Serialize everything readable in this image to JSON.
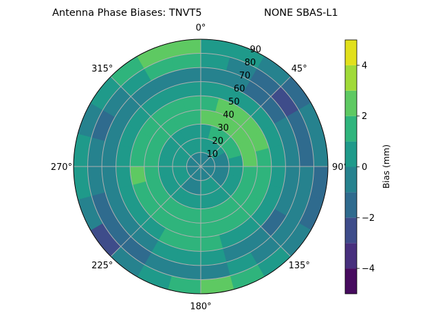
{
  "chart_data": {
    "type": "heatmap",
    "subtype": "polar-contourf",
    "title_left": "Antenna Phase Biases: TNVT5",
    "title_right": "NONE SBAS-L1",
    "angular_ticks": [
      "0°",
      "45°",
      "90°",
      "135°",
      "180°",
      "225°",
      "270°",
      "315°"
    ],
    "radial_ticks": [
      "10",
      "20",
      "30",
      "40",
      "50",
      "60",
      "70",
      "80",
      "90"
    ],
    "radial_range": [
      0,
      90
    ],
    "theta_zero": "north",
    "theta_direction": "clockwise",
    "grid": true,
    "colorbar": {
      "label": "Bias (mm)",
      "ticks": [
        "−4",
        "−2",
        "0",
        "2",
        "4"
      ],
      "levels": [
        -5,
        -4,
        -3,
        -2,
        -1,
        0,
        1,
        2,
        3,
        4,
        5
      ],
      "colormap": "viridis",
      "colors": [
        "#460b5e",
        "#472f7d",
        "#3e4c8a",
        "#2f6b8e",
        "#26828e",
        "#1f9a8a",
        "#2fb47c",
        "#5ec962",
        "#a0da39",
        "#e1e01c"
      ]
    },
    "azimuth_centers": [
      7.5,
      22.5,
      37.5,
      52.5,
      67.5,
      82.5,
      97.5,
      112.5,
      127.5,
      142.5,
      157.5,
      172.5,
      187.5,
      202.5,
      217.5,
      232.5,
      247.5,
      262.5,
      277.5,
      292.5,
      307.5,
      322.5,
      337.5,
      352.5
    ],
    "radial_centers": [
      5,
      15,
      25,
      35,
      45,
      55,
      65,
      75,
      85
    ],
    "values": [
      [
        -0.5,
        0.5,
        0.5,
        2.5,
        1.5,
        0.5,
        -0.5,
        0.5,
        0.5
      ],
      [
        -0.5,
        0.5,
        1.5,
        2.5,
        2.5,
        0.5,
        -0.5,
        -0.5,
        0.5
      ],
      [
        -0.5,
        0.5,
        1.5,
        2.5,
        2.5,
        0.5,
        -1.5,
        -1.5,
        -0.5
      ],
      [
        -0.5,
        0.5,
        1.5,
        2.5,
        2.5,
        0.5,
        -1.5,
        -2.5,
        -1.5
      ],
      [
        -0.5,
        -0.5,
        1.5,
        2.5,
        2.5,
        0.5,
        -0.5,
        -1.5,
        -0.5
      ],
      [
        -0.5,
        -0.5,
        0.5,
        2.5,
        1.5,
        0.5,
        -0.5,
        -1.5,
        -0.5
      ],
      [
        -0.5,
        -0.5,
        0.5,
        1.5,
        1.5,
        0.5,
        -0.5,
        -0.5,
        -1.5
      ],
      [
        -0.5,
        -0.5,
        0.5,
        1.5,
        1.5,
        0.5,
        -0.5,
        -0.5,
        -1.5
      ],
      [
        -0.5,
        -0.5,
        0.5,
        1.5,
        1.5,
        0.5,
        -1.5,
        -0.5,
        -0.5
      ],
      [
        -0.5,
        0.5,
        0.5,
        1.5,
        1.5,
        0.5,
        -0.5,
        -0.5,
        0.5
      ],
      [
        -0.5,
        0.5,
        0.5,
        1.5,
        1.5,
        0.5,
        -0.5,
        0.5,
        1.5
      ],
      [
        -0.5,
        0.5,
        0.5,
        1.5,
        1.5,
        1.5,
        0.5,
        -0.5,
        2.5
      ],
      [
        -0.5,
        -0.5,
        0.5,
        1.5,
        1.5,
        1.5,
        0.5,
        -0.5,
        1.5
      ],
      [
        -0.5,
        -0.5,
        0.5,
        1.5,
        1.5,
        1.5,
        0.5,
        -0.5,
        0.5
      ],
      [
        -0.5,
        -0.5,
        0.5,
        1.5,
        1.5,
        0.5,
        -0.5,
        -1.5,
        -0.5
      ],
      [
        -0.5,
        0.5,
        0.5,
        1.5,
        1.5,
        0.5,
        -0.5,
        -1.5,
        -2.5
      ],
      [
        -0.5,
        0.5,
        0.5,
        1.5,
        1.5,
        0.5,
        -0.5,
        -1.5,
        -0.5
      ],
      [
        -0.5,
        0.5,
        0.5,
        1.5,
        2.5,
        0.5,
        -0.5,
        -0.5,
        0.5
      ],
      [
        -0.5,
        0.5,
        0.5,
        1.5,
        1.5,
        0.5,
        -0.5,
        -0.5,
        0.5
      ],
      [
        -0.5,
        0.5,
        0.5,
        1.5,
        1.5,
        0.5,
        -0.5,
        -1.5,
        -0.5
      ],
      [
        -0.5,
        0.5,
        0.5,
        1.5,
        1.5,
        0.5,
        -0.5,
        -0.5,
        0.5
      ],
      [
        -0.5,
        0.5,
        0.5,
        1.5,
        1.5,
        0.5,
        -0.5,
        0.5,
        1.5
      ],
      [
        -0.5,
        0.5,
        0.5,
        1.5,
        1.5,
        0.5,
        -0.5,
        1.5,
        2.5
      ],
      [
        -0.5,
        0.5,
        0.5,
        1.5,
        1.5,
        0.5,
        -0.5,
        1.5,
        2.5
      ]
    ]
  }
}
